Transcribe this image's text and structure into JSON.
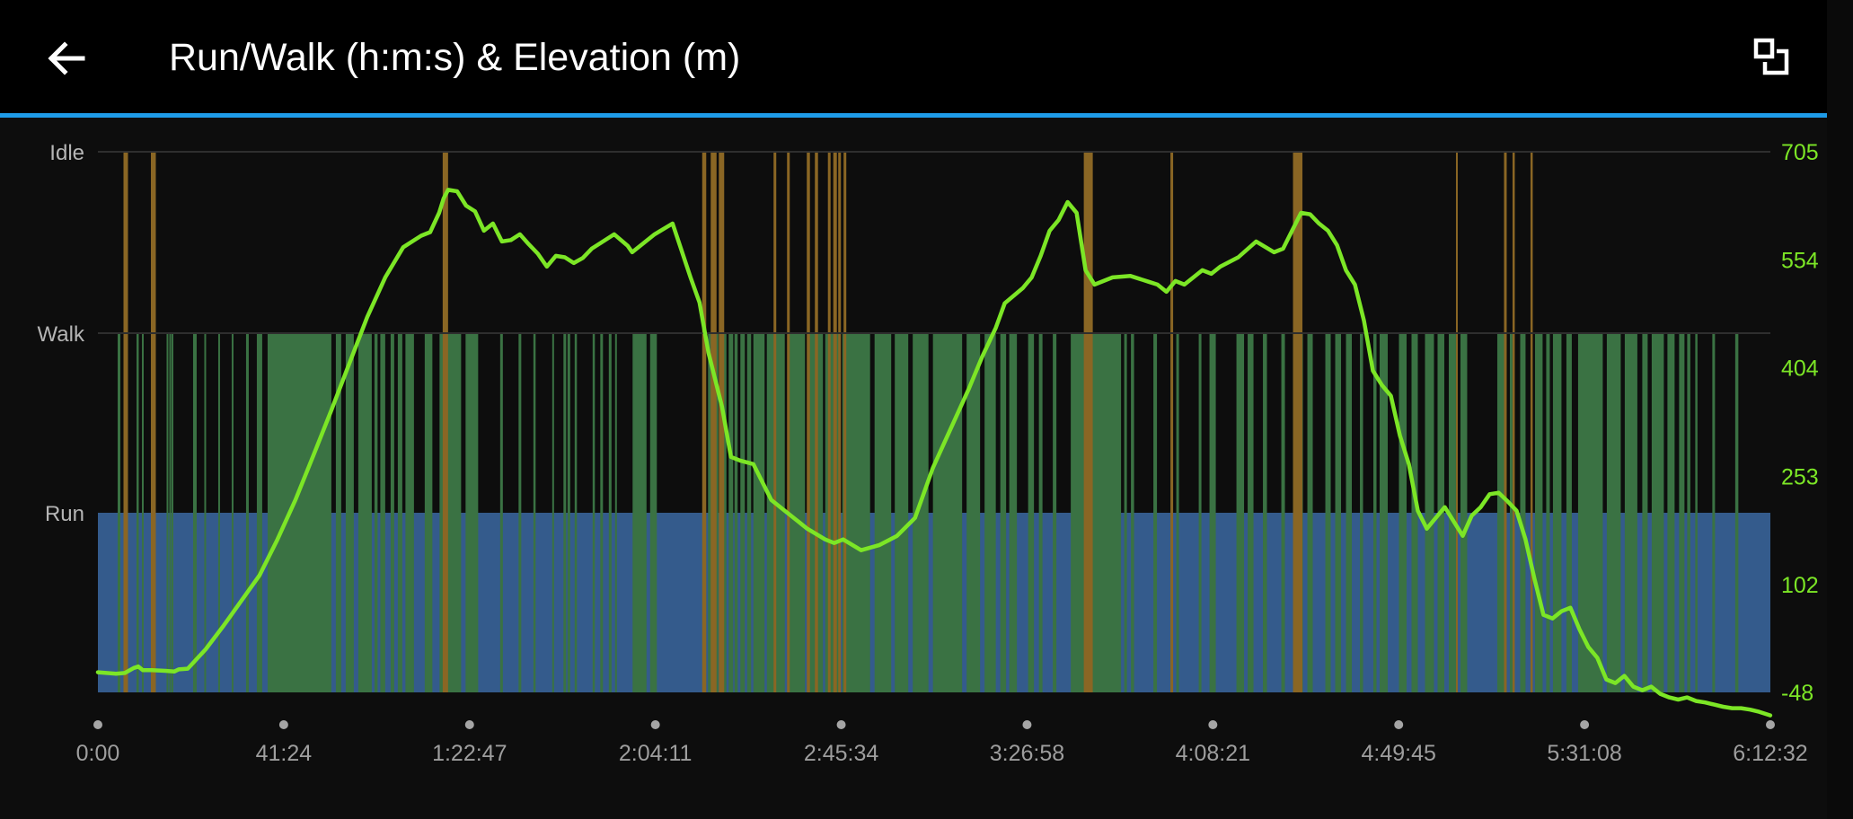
{
  "header": {
    "title": "Run/Walk (h:m:s) & Elevation (m)",
    "back_icon": "arrow-left-icon",
    "expand_icon": "fullscreen-toggle-icon"
  },
  "colors": {
    "accent": "#1e9be8",
    "run": "#345b8c",
    "walk": "#3a7243",
    "idle": "#8a6624",
    "elevation": "#7ce626",
    "grid": "#2e2e2e",
    "tick_text": "#9e9e9e",
    "left_tick_text": "#b5b5b5"
  },
  "chart_data": {
    "type": "line",
    "title": "Run/Walk (h:m:s) & Elevation (m)",
    "x_unit": "h:m:s",
    "x_ticks": [
      "0:00",
      "41:24",
      "1:22:47",
      "2:04:11",
      "2:45:34",
      "3:26:58",
      "4:08:21",
      "4:49:45",
      "5:31:08",
      "6:12:32"
    ],
    "xlim": [
      0,
      372.53
    ],
    "left_axis": {
      "type": "categorical",
      "categories": [
        "Run",
        "Walk",
        "Idle"
      ],
      "tick_labels": [
        "Run",
        "Walk",
        "Idle"
      ]
    },
    "right_axis": {
      "label": "Elevation (m)",
      "ylim": [
        -48,
        705
      ],
      "tick_labels": [
        "705",
        "554",
        "404",
        "253",
        "102",
        "-48"
      ]
    },
    "grid": true,
    "activity_state": {
      "description": "Run is the default state; listed intervals are in minutes.",
      "default": "Run",
      "walk_intervals": [
        [
          4.4,
          5.0
        ],
        [
          8.6,
          9.1
        ],
        [
          9.8,
          10.2
        ],
        [
          15.3,
          15.7
        ],
        [
          15.9,
          16.3
        ],
        [
          16.4,
          16.8
        ],
        [
          21.2,
          22.0
        ],
        [
          23.7,
          24.1
        ],
        [
          26.8,
          27.2
        ],
        [
          29.8,
          30.2
        ],
        [
          33.0,
          33.6
        ],
        [
          35.4,
          36.6
        ],
        [
          37.8,
          52.0
        ],
        [
          53.0,
          54.2
        ],
        [
          55.2,
          57.0
        ],
        [
          58.0,
          61.0
        ],
        [
          61.6,
          62.3
        ],
        [
          62.9,
          64.0
        ],
        [
          65.2,
          66.0
        ],
        [
          66.8,
          67.8
        ],
        [
          68.5,
          70.4
        ],
        [
          72.8,
          74.5
        ],
        [
          76.1,
          80.9
        ],
        [
          81.9,
          84.7
        ],
        [
          89.6,
          90.2
        ],
        [
          93.7,
          94.3
        ],
        [
          97.0,
          97.5
        ],
        [
          101.2,
          101.6
        ],
        [
          103.7,
          104.3
        ],
        [
          104.6,
          105.2
        ],
        [
          106.2,
          106.7
        ],
        [
          110.2,
          110.7
        ],
        [
          111.9,
          112.5
        ],
        [
          113.8,
          114.4
        ],
        [
          115.2,
          115.6
        ],
        [
          119.1,
          122.2
        ],
        [
          123.0,
          124.5
        ],
        [
          135.9,
          136.6
        ],
        [
          137.5,
          138.2
        ],
        [
          139.0,
          140.0
        ],
        [
          140.5,
          141.5
        ],
        [
          141.8,
          142.5
        ],
        [
          143.1,
          144.1
        ],
        [
          144.6,
          145.5
        ],
        [
          146.0,
          148.5
        ],
        [
          149.0,
          153.0
        ],
        [
          154.0,
          157.5
        ],
        [
          158.5,
          161.5
        ],
        [
          162.0,
          165.0
        ],
        [
          165.8,
          172.0
        ],
        [
          173.0,
          176.7
        ],
        [
          177.5,
          180.5
        ],
        [
          181.5,
          185.0
        ],
        [
          186.0,
          192.5
        ],
        [
          193.5,
          196.5
        ],
        [
          197.5,
          200.0
        ],
        [
          201.0,
          202.3
        ],
        [
          203.0,
          204.7
        ],
        [
          207.2,
          208.5
        ],
        [
          209.6,
          210.4
        ],
        [
          212.7,
          213.5
        ],
        [
          216.7,
          227.9
        ],
        [
          228.6,
          229.2
        ],
        [
          230.1,
          230.8
        ],
        [
          235.1,
          235.9
        ],
        [
          240.2,
          240.8
        ],
        [
          245.2,
          245.8
        ],
        [
          247.6,
          249.0
        ],
        [
          253.6,
          255.3
        ],
        [
          256.1,
          257.4
        ],
        [
          259.5,
          260.4
        ],
        [
          263.6,
          264.4
        ],
        [
          266.2,
          266.8
        ],
        [
          267.6,
          268.4
        ],
        [
          269.4,
          270.6
        ],
        [
          273.4,
          274.6
        ],
        [
          275.6,
          276.9
        ],
        [
          278.0,
          279.3
        ],
        [
          281.1,
          281.8
        ],
        [
          284.1,
          284.8
        ],
        [
          285.5,
          287.3
        ],
        [
          289.8,
          291.5
        ],
        [
          292.6,
          294.0
        ],
        [
          295.6,
          297.6
        ],
        [
          298.4,
          299.9
        ],
        [
          300.9,
          302.5
        ],
        [
          303.5,
          305.0
        ],
        [
          311.7,
          313.8
        ],
        [
          314.5,
          315.1
        ],
        [
          316.8,
          318.0
        ],
        [
          320.1,
          321.8
        ],
        [
          322.6,
          323.4
        ],
        [
          324.1,
          326.0
        ],
        [
          327.1,
          328.3
        ],
        [
          329.7,
          335.2
        ],
        [
          336.1,
          339.2
        ],
        [
          340.1,
          342.9
        ],
        [
          344.0,
          345.2
        ],
        [
          346.1,
          348.8
        ],
        [
          349.6,
          351.2
        ],
        [
          352.2,
          353.4
        ],
        [
          354.0,
          354.7
        ],
        [
          355.8,
          356.3
        ],
        [
          359.6,
          360.2
        ],
        [
          364.7,
          365.4
        ]
      ],
      "idle_intervals": [
        [
          5.7,
          6.7
        ],
        [
          11.8,
          12.9
        ],
        [
          76.8,
          78.0
        ],
        [
          134.6,
          135.5
        ],
        [
          136.5,
          137.8
        ],
        [
          138.3,
          139.5
        ],
        [
          150.5,
          151.1
        ],
        [
          153.5,
          154.1
        ],
        [
          157.9,
          158.6
        ],
        [
          159.7,
          160.4
        ],
        [
          162.6,
          163.2
        ],
        [
          163.8,
          164.6
        ],
        [
          164.9,
          165.5
        ],
        [
          166.1,
          166.7
        ],
        [
          219.6,
          221.6
        ],
        [
          238.9,
          239.5
        ],
        [
          266.2,
          268.3
        ],
        [
          302.5,
          302.9
        ],
        [
          313.2,
          313.8
        ],
        [
          315.1,
          315.6
        ],
        [
          319.1,
          319.6
        ]
      ]
    },
    "series": [
      {
        "name": "Elevation (m)",
        "axis": "right",
        "x": [
          0,
          4,
          6,
          8,
          9,
          10,
          12,
          15,
          17,
          18,
          20,
          24,
          28,
          32,
          36,
          40,
          44,
          48,
          52,
          56,
          60,
          64,
          68,
          70,
          72,
          74,
          76,
          77,
          78,
          80,
          82,
          84,
          86,
          88,
          90,
          92,
          94,
          96,
          98,
          100,
          102,
          104,
          106,
          108,
          110,
          112,
          115,
          118,
          119,
          121,
          124,
          128,
          132,
          134,
          136,
          139,
          141,
          143,
          146,
          150,
          154,
          158,
          162,
          164,
          166,
          170,
          174,
          178,
          182,
          186,
          190,
          194,
          197,
          200,
          202,
          206,
          208,
          210,
          212,
          214,
          216,
          218,
          220,
          222,
          226,
          230,
          234,
          236,
          238,
          240,
          242,
          244,
          246,
          248,
          250,
          254,
          258,
          262,
          264,
          266,
          268,
          270,
          272,
          274,
          276,
          278,
          280,
          282,
          284,
          286,
          288,
          290,
          292,
          294,
          296,
          300,
          304,
          306,
          308,
          310,
          312,
          314,
          316,
          318,
          320,
          322,
          324,
          326,
          328,
          330,
          332,
          334,
          336,
          338,
          340,
          342,
          344,
          346,
          348,
          350,
          352,
          354,
          356,
          358,
          360,
          362,
          364,
          366,
          368,
          370,
          372.5
        ],
        "y": [
          -20,
          -22,
          -21,
          -14,
          -12,
          -17,
          -17,
          -18,
          -19,
          -16,
          -15,
          12,
          45,
          80,
          115,
          165,
          220,
          282,
          345,
          410,
          475,
          530,
          572,
          580,
          588,
          593,
          620,
          640,
          652,
          650,
          630,
          622,
          595,
          605,
          580,
          582,
          590,
          576,
          563,
          545,
          560,
          558,
          550,
          557,
          570,
          578,
          590,
          574,
          565,
          575,
          590,
          605,
          530,
          495,
          425,
          350,
          280,
          275,
          270,
          220,
          200,
          180,
          165,
          160,
          165,
          150,
          157,
          170,
          195,
          265,
          320,
          375,
          420,
          460,
          494,
          515,
          530,
          560,
          595,
          610,
          635,
          620,
          540,
          520,
          530,
          532,
          524,
          520,
          510,
          525,
          520,
          530,
          540,
          535,
          545,
          558,
          580,
          565,
          570,
          595,
          620,
          618,
          605,
          595,
          575,
          540,
          520,
          470,
          400,
          380,
          365,
          310,
          270,
          205,
          180,
          210,
          170,
          198,
          210,
          228,
          230,
          218,
          205,
          165,
          110,
          60,
          55,
          65,
          70,
          40,
          15,
          0,
          -30,
          -35,
          -25,
          -40,
          -45,
          -40,
          -50,
          -55,
          -58,
          -55,
          -60,
          -62,
          -65,
          -68,
          -70,
          -70,
          -72,
          -75,
          -80
        ]
      }
    ]
  }
}
